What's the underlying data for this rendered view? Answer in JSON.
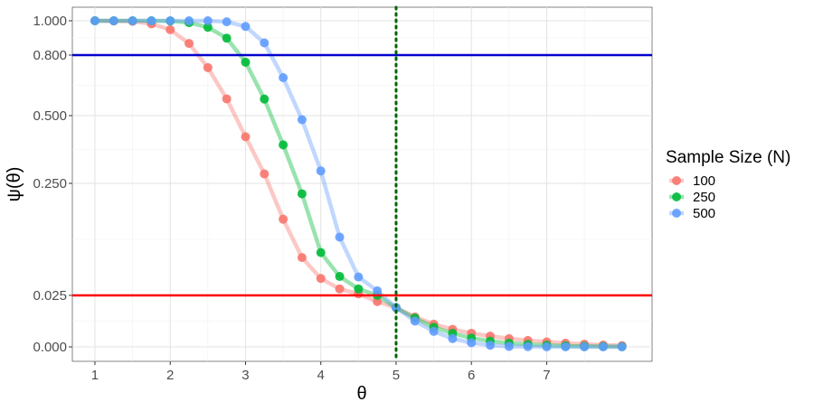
{
  "chart_data": {
    "type": "line",
    "xlabel": "θ",
    "ylabel": "ψ(θ)",
    "xlim": [
      0.7,
      8.4
    ],
    "x_ticks": [
      {
        "value": 1,
        "label": "1"
      },
      {
        "value": 2,
        "label": "2"
      },
      {
        "value": 3,
        "label": "3"
      },
      {
        "value": 4,
        "label": "4"
      },
      {
        "value": 5,
        "label": "5"
      },
      {
        "value": 6,
        "label": "6"
      },
      {
        "value": 7,
        "label": "7"
      }
    ],
    "x_minor": [
      1.5,
      2.5,
      3.5,
      4.5,
      5.5,
      6.5,
      7.5
    ],
    "y_ticks": [
      {
        "value": 0.0,
        "label": "0.000"
      },
      {
        "value": 0.025,
        "label": "0.025"
      },
      {
        "value": 0.25,
        "label": "0.250"
      },
      {
        "value": 0.5,
        "label": "0.500"
      },
      {
        "value": 0.8,
        "label": "0.800"
      },
      {
        "value": 1.0,
        "label": "1.000"
      }
    ],
    "grid": true,
    "legend": {
      "title": "Sample Size (N)",
      "position": "right"
    },
    "x": [
      1,
      1.25,
      1.5,
      1.75,
      2,
      2.25,
      2.5,
      2.75,
      3,
      3.25,
      3.5,
      3.75,
      4,
      4.25,
      4.5,
      4.75,
      5,
      5.25,
      5.5,
      5.75,
      6,
      6.25,
      6.5,
      6.75,
      7,
      7.25,
      7.5,
      7.75,
      8
    ],
    "series": [
      {
        "name": "100",
        "color": "#F8766D",
        "values": [
          1.0,
          0.999,
          0.997,
          0.982,
          0.948,
          0.868,
          0.738,
          0.583,
          0.422,
          0.285,
          0.178,
          0.101,
          0.059,
          0.038,
          0.028,
          0.022,
          0.019,
          0.0145,
          0.011,
          0.0085,
          0.0066,
          0.0052,
          0.004,
          0.0031,
          0.0024,
          0.0018,
          0.0013,
          0.0009,
          0.0006
        ]
      },
      {
        "name": "250",
        "color": "#00BA38",
        "values": [
          1.0,
          1.0,
          1.0,
          1.0,
          0.999,
          0.989,
          0.962,
          0.899,
          0.765,
          0.582,
          0.392,
          0.229,
          0.111,
          0.063,
          0.038,
          0.025,
          0.019,
          0.014,
          0.0095,
          0.0066,
          0.0043,
          0.0028,
          0.0018,
          0.0012,
          0.0008,
          0.0005,
          0.0003,
          0.0002,
          0.0001
        ]
      },
      {
        "name": "500",
        "color": "#619CFF",
        "values": [
          1.0,
          1.0,
          1.0,
          1.0,
          1.0,
          1.0,
          1.0,
          0.994,
          0.967,
          0.871,
          0.688,
          0.485,
          0.296,
          0.142,
          0.062,
          0.034,
          0.019,
          0.0125,
          0.0075,
          0.004,
          0.002,
          0.0008,
          0.0002,
          0.0001,
          0.0,
          0.0,
          0.0,
          0.0,
          0.0
        ]
      }
    ],
    "hlines": [
      {
        "value": 0.8,
        "color": "#0000CD"
      },
      {
        "value": 0.025,
        "color": "#FF0000"
      }
    ],
    "vlines": [
      {
        "value": 5,
        "color": "#006400",
        "style": "dotted"
      }
    ]
  }
}
